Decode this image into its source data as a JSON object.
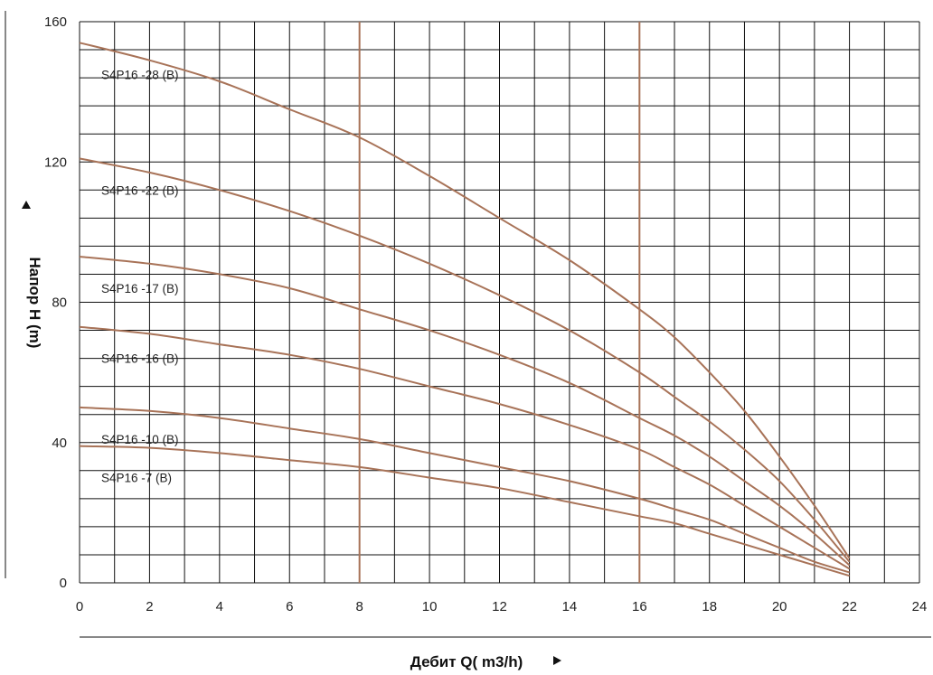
{
  "chart_data": {
    "type": "line",
    "xlabel": "Дебит Q( m3/h)",
    "ylabel": "Напор H (m)",
    "xlim": [
      0,
      24
    ],
    "ylim": [
      0,
      160
    ],
    "x_ticks": [
      "0",
      "2",
      "4",
      "6",
      "8",
      "10",
      "12",
      "14",
      "16",
      "18",
      "20",
      "22",
      "24"
    ],
    "y_ticks": [
      "0",
      "40",
      "80",
      "120",
      "160"
    ],
    "grid": true,
    "highlight_x": [
      8,
      16
    ],
    "line_color": "#a87358",
    "highlight_color": "#a87358",
    "grid_color": "#111111",
    "series": [
      {
        "name": "S4P16 -28 (B)",
        "x": [
          0,
          2,
          4,
          6,
          8,
          10,
          12,
          14,
          16,
          17,
          18,
          19,
          20,
          21,
          22
        ],
        "y": [
          154,
          149,
          143,
          135,
          127,
          116,
          104,
          92,
          78,
          70,
          60,
          49,
          36,
          22,
          7
        ]
      },
      {
        "name": "S4P16 -22 (B)",
        "x": [
          0,
          2,
          4,
          6,
          8,
          10,
          12,
          14,
          16,
          17,
          18,
          19,
          20,
          21,
          22
        ],
        "y": [
          121,
          117,
          112,
          106,
          99,
          91,
          82,
          72,
          60,
          53,
          46,
          38,
          29,
          18,
          6
        ]
      },
      {
        "name": "S4P16 -17 (B)",
        "x": [
          0,
          2,
          4,
          6,
          8,
          10,
          12,
          14,
          16,
          17,
          18,
          19,
          20,
          21,
          22
        ],
        "y": [
          93,
          91,
          88,
          84,
          78,
          72,
          65,
          57,
          47,
          42,
          36,
          29,
          22,
          14,
          5
        ]
      },
      {
        "name": "S4P16 -16 (B)",
        "x": [
          0,
          2,
          4,
          6,
          8,
          10,
          12,
          14,
          16,
          17,
          18,
          19,
          20,
          21,
          22
        ],
        "y": [
          73,
          71,
          68,
          65,
          61,
          56,
          51,
          45,
          38,
          33,
          28,
          22,
          16,
          10,
          4
        ]
      },
      {
        "name": "S4P16 -10 (B)",
        "x": [
          0,
          2,
          4,
          6,
          8,
          10,
          12,
          14,
          16,
          17,
          18,
          19,
          20,
          21,
          22
        ],
        "y": [
          50,
          49,
          47,
          44,
          41,
          37,
          33,
          29,
          24,
          21,
          18,
          14,
          10,
          6,
          3
        ]
      },
      {
        "name": "S4P16 -7 (B)",
        "x": [
          0,
          2,
          4,
          6,
          8,
          10,
          12,
          14,
          16,
          17,
          18,
          19,
          20,
          21,
          22
        ],
        "y": [
          39,
          38.5,
          37,
          35,
          33,
          30,
          27,
          23,
          19,
          17,
          14,
          11,
          8,
          5,
          2
        ]
      }
    ]
  }
}
